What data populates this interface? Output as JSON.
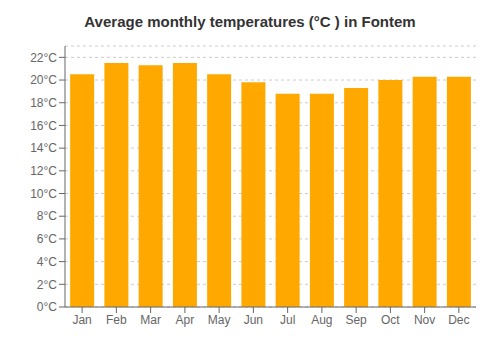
{
  "chart_data": {
    "type": "bar",
    "title": "Average monthly temperatures (°C ) in Fontem",
    "categories": [
      "Jan",
      "Feb",
      "Mar",
      "Apr",
      "May",
      "Jun",
      "Jul",
      "Aug",
      "Sep",
      "Oct",
      "Nov",
      "Dec"
    ],
    "values": [
      20.5,
      21.5,
      21.3,
      21.5,
      20.5,
      19.8,
      18.8,
      18.8,
      19.3,
      20.0,
      20.3,
      20.3
    ],
    "color": "#FFA800",
    "ylim": [
      0,
      23
    ],
    "yticks": [
      {
        "value": 0,
        "label": "0°C"
      },
      {
        "value": 2,
        "label": "2°C"
      },
      {
        "value": 4,
        "label": "4°C"
      },
      {
        "value": 6,
        "label": "6°C"
      },
      {
        "value": 8,
        "label": "8°C"
      },
      {
        "value": 10,
        "label": "10°C"
      },
      {
        "value": 12,
        "label": "12°C"
      },
      {
        "value": 14,
        "label": "14°C"
      },
      {
        "value": 16,
        "label": "16°C"
      },
      {
        "value": 18,
        "label": "18°C"
      },
      {
        "value": 20,
        "label": "20°C"
      },
      {
        "value": 22,
        "label": "22°C"
      }
    ],
    "grid": true
  }
}
